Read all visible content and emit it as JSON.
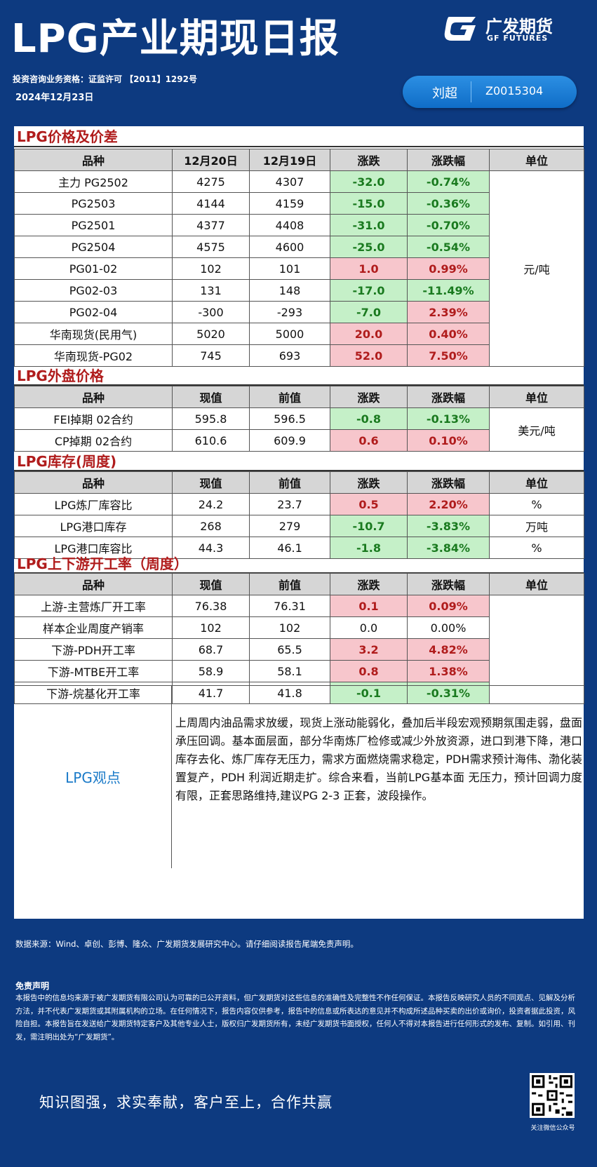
{
  "header": {
    "title": "LPG产业期现日报",
    "logo_cn": "广发期货",
    "logo_en": "GF FUTURES",
    "license": "投资咨询业务资格：证监许可 【2011】1292号",
    "date": "2024年12月23日",
    "author_name": "刘超",
    "author_id": "Z0015304"
  },
  "sections": {
    "price": {
      "title": "LPG价格及价差",
      "headers": [
        "品种",
        "12月20日",
        "12月19日",
        "涨跌",
        "涨跌幅",
        "单位"
      ],
      "unit": "元/吨",
      "rows": [
        [
          "主力 PG2502",
          "4275",
          "4307",
          "-32.0",
          "-0.74%"
        ],
        [
          "PG2503",
          "4144",
          "4159",
          "-15.0",
          "-0.36%"
        ],
        [
          "PG2501",
          "4377",
          "4408",
          "-31.0",
          "-0.70%"
        ],
        [
          "PG2504",
          "4575",
          "4600",
          "-25.0",
          "-0.54%"
        ],
        [
          "PG01-02",
          "102",
          "101",
          "1.0",
          "0.99%"
        ],
        [
          "PG02-03",
          "131",
          "148",
          "-17.0",
          "-11.49%"
        ],
        [
          "PG02-04",
          "-300",
          "-293",
          "-7.0",
          "2.39%"
        ],
        [
          "华南现货(民用气)",
          "5020",
          "5000",
          "20.0",
          "0.40%"
        ],
        [
          "华南现货-PG02",
          "745",
          "693",
          "52.0",
          "7.50%"
        ]
      ],
      "colors": [
        [
          "neg",
          "neg"
        ],
        [
          "neg",
          "neg"
        ],
        [
          "neg",
          "neg"
        ],
        [
          "neg",
          "neg"
        ],
        [
          "pos",
          "pos"
        ],
        [
          "neg",
          "neg"
        ],
        [
          "neg",
          "pos"
        ],
        [
          "pos",
          "pos"
        ],
        [
          "pos",
          "pos"
        ]
      ]
    },
    "external": {
      "title": "LPG外盘价格",
      "headers": [
        "品种",
        "现值",
        "前值",
        "涨跌",
        "涨跌幅",
        "单位"
      ],
      "unit": "美元/吨",
      "rows": [
        [
          "FEI掉期 02合约",
          "595.8",
          "596.5",
          "-0.8",
          "-0.13%"
        ],
        [
          "CP掉期  02合约",
          "610.6",
          "609.9",
          "0.6",
          "0.10%"
        ]
      ],
      "colors": [
        [
          "neg",
          "neg"
        ],
        [
          "pos",
          "pos"
        ]
      ]
    },
    "inventory": {
      "title": "LPG库存(周度)",
      "headers": [
        "品种",
        "现值",
        "前值",
        "涨跌",
        "涨跌幅",
        "单位"
      ],
      "rows": [
        [
          "LPG炼厂库容比",
          "24.2",
          "23.7",
          "0.5",
          "2.20%",
          "%"
        ],
        [
          "LPG港口库存",
          "268",
          "279",
          "-10.7",
          "-3.83%",
          "万吨"
        ],
        [
          "LPG港口库容比",
          "44.3",
          "46.1",
          "-1.8",
          "-3.84%",
          "%"
        ]
      ],
      "colors": [
        [
          "pos",
          "pos"
        ],
        [
          "neg",
          "neg"
        ],
        [
          "neg",
          "neg"
        ]
      ]
    },
    "operating": {
      "title": "LPG上下游开工率（周度）",
      "headers": [
        "品种",
        "现值",
        "前值",
        "涨跌",
        "涨跌幅",
        "单位"
      ],
      "rows": [
        [
          "上游-主营炼厂开工率",
          "76.38",
          "76.31",
          "0.1",
          "0.09%"
        ],
        [
          "样本企业周度产销率",
          "102",
          "102",
          "0.0",
          "0.00%"
        ],
        [
          "下游-PDH开工率",
          "68.7",
          "65.5",
          "3.2",
          "4.82%"
        ],
        [
          "下游-MTBE开工率",
          "58.9",
          "58.1",
          "0.8",
          "1.38%"
        ],
        [
          "下游-烷基化开工率",
          "41.7",
          "41.8",
          "-0.1",
          "-0.31%"
        ]
      ],
      "colors": [
        [
          "pos",
          "pos"
        ],
        [
          "",
          ""
        ],
        [
          "pos",
          "pos"
        ],
        [
          "pos",
          "pos"
        ],
        [
          "neg",
          "neg"
        ]
      ]
    },
    "view": {
      "label": "LPG观点",
      "text": "上周周内油品需求放缓，现货上涨动能弱化，叠加后半段宏观预期氛围走弱，盘面承压回调。基本面层面，部分华南炼厂检修或减少外放资源，进口到港下降，港口库存去化、炼厂库存无压力，需求方面燃烧需求稳定，PDH需求预计海伟、渤化装置复产，PDH 利润近期走扩。综合来看，当前LPG基本面 无压力，预计回调力度有限，正套思路维持,建议PG 2-3 正套，波段操作。"
    }
  },
  "footer": {
    "source": "数据来源：Wind、卓创、彭博、隆众、广发期货发展研究中心。请仔细阅读报告尾端免责声明。",
    "disclaimer_title": "免责声明",
    "disclaimer_text": "本报告中的信息均来源于被广发期货有限公司认为可靠的已公开资料，但广发期货对这些信息的准确性及完整性不作任何保证。本报告反映研究人员的不同观点、见解及分析方法，并不代表广发期货或其附属机构的立场。在任何情况下，报告内容仅供参考，报告中的信息或所表达的意见并不构成所述品种买卖的出价或询价，投资者据此投资，风险自担。本报告旨在发送给广发期货特定客户及其他专业人士，版权归广发期货所有，未经广发期货书面授权，任何人不得对本报告进行任何形式的发布、复制。如引用、刊发，需注明出处为“广发期货”。",
    "slogan": "知识图强，求实奉献，客户至上，合作共赢",
    "qr_label": "关注微信公众号"
  }
}
